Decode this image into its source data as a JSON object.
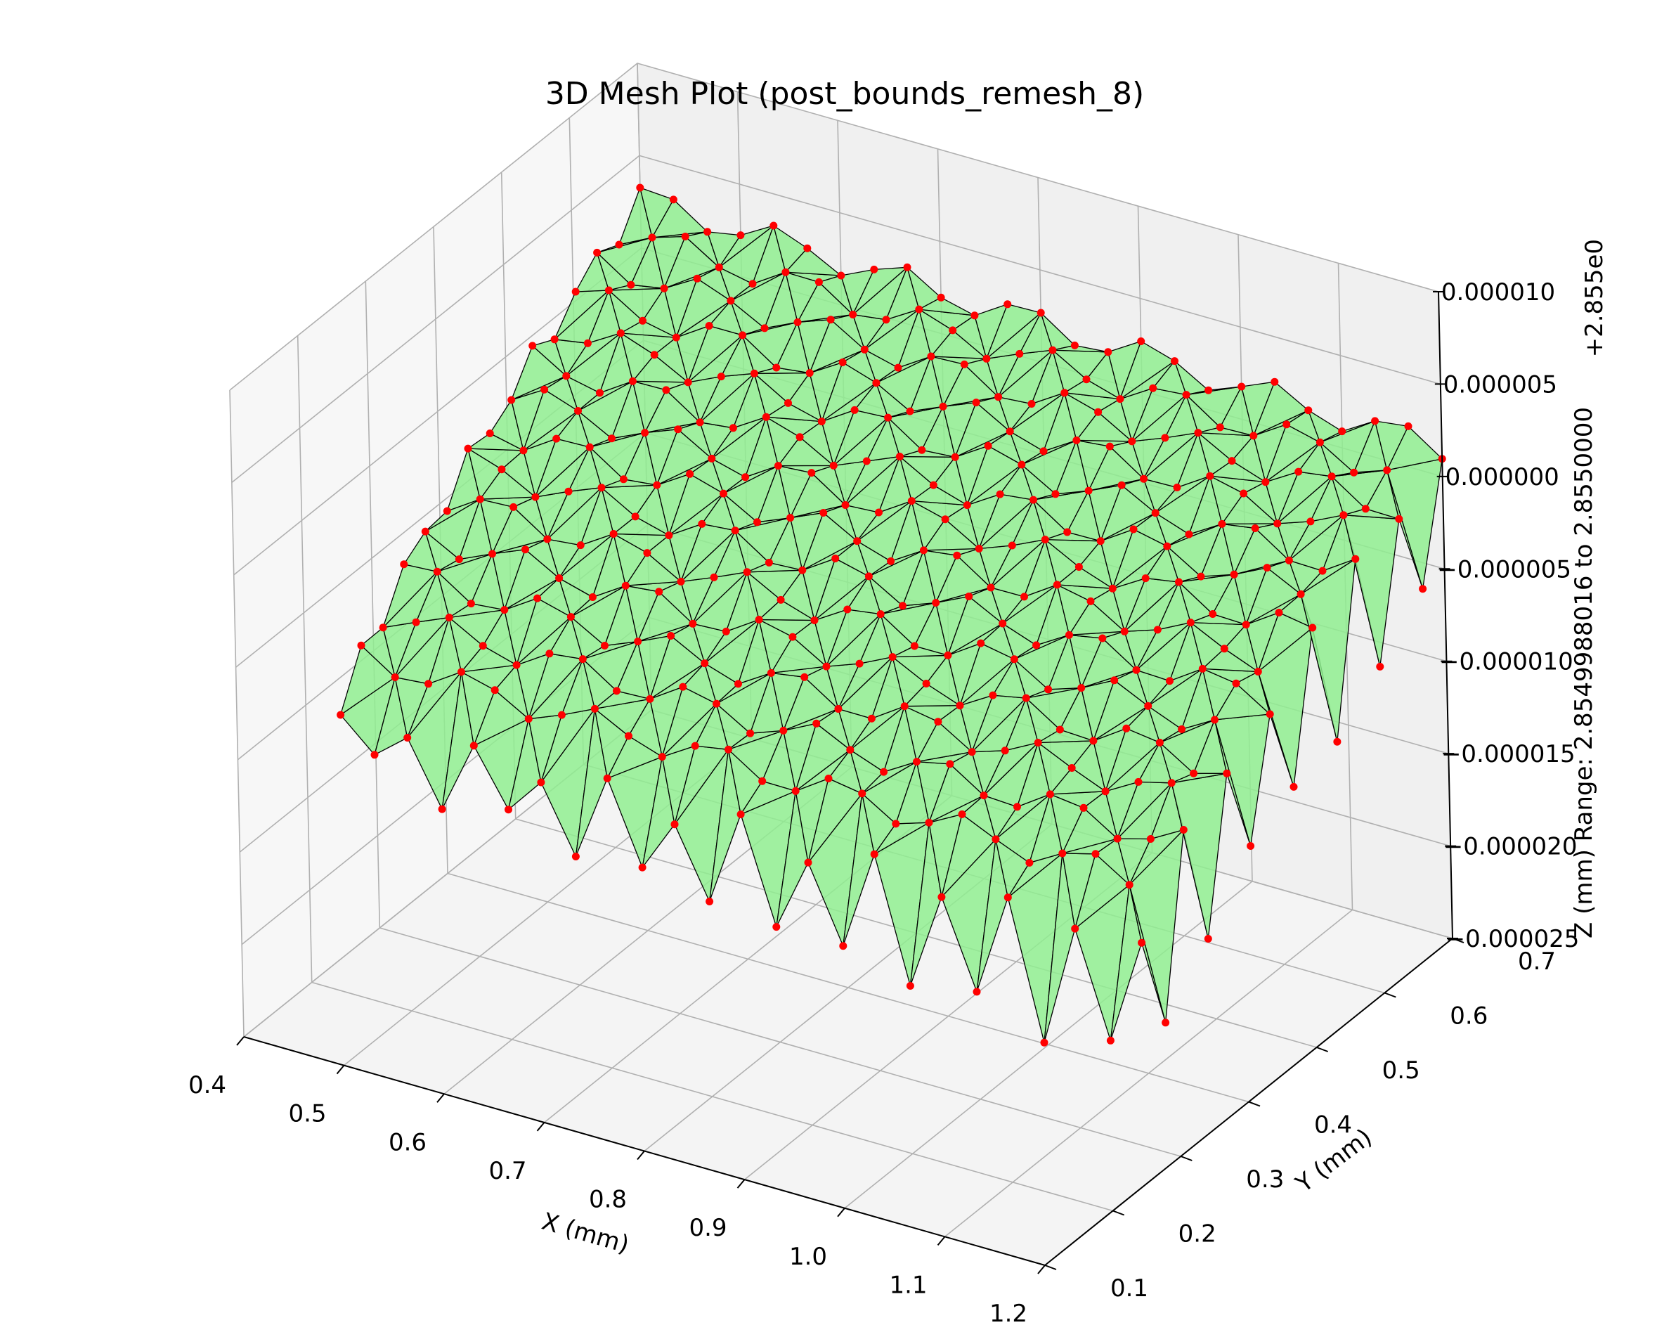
{
  "chart_data": {
    "type": "3d-surface-mesh",
    "title": "3D Mesh Plot (post_bounds_remesh_8)",
    "xlabel": "X (mm)",
    "ylabel": "Y (mm)",
    "zlabel": "Z (mm)  Range: 2.854998801 to 2.855000000",
    "zlabel_parts": [
      "Z (mm)  Range: 2.8549988016 to 2.8550000",
      "+2.855e0"
    ],
    "x_ticks": [
      "0.4",
      "0.5",
      "0.6",
      "0.7",
      "0.8",
      "0.9",
      "1.0",
      "1.1",
      "1.2"
    ],
    "y_ticks": [
      "0.1",
      "0.2",
      "0.3",
      "0.4",
      "0.5",
      "0.6",
      "0.7"
    ],
    "z_ticks": [
      "−0.000025",
      "−0.000020",
      "−0.000015",
      "−0.000010",
      "−0.000005",
      "0.000000",
      "0.000005",
      "0.000010"
    ],
    "xlim": [
      0.4,
      1.2
    ],
    "ylim": [
      0.1,
      0.7
    ],
    "zlim": [
      -2.5e-05,
      1e-05
    ],
    "surface": {
      "x_range": [
        0.4,
        1.2
      ],
      "y_range": [
        0.25,
        0.7
      ],
      "z_near_edge": -1.2e-05,
      "z_far_edge": 1.5e-06,
      "z_left_far_corner": 3.5e-06
    },
    "grid": true,
    "colors": {
      "face": "#90ee90",
      "edge": "#000000",
      "vertex": "#ff0000",
      "pane": "#f2f2f2",
      "grid": "#b0b0b0"
    }
  }
}
